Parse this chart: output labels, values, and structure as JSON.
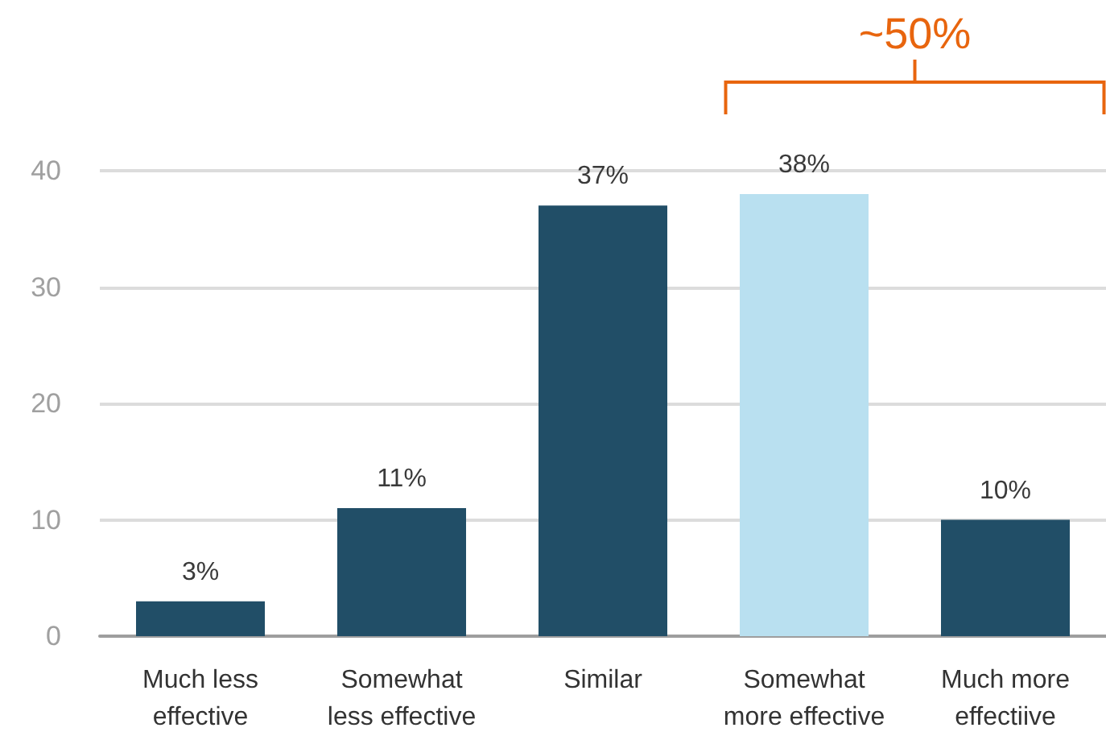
{
  "chart_data": {
    "type": "bar",
    "categories": [
      "Much less\neffective",
      "Somewhat\nless effective",
      "Similar",
      "Somewhat\nmore effective",
      "Much more\neffectiive"
    ],
    "values": [
      3,
      11,
      37,
      38,
      10
    ],
    "colors": [
      "#214e67",
      "#214e67",
      "#214e67",
      "#b9e0f0",
      "#214e67"
    ],
    "value_labels": [
      "3%",
      "11%",
      "37%",
      "38%",
      "10%"
    ],
    "ylim": [
      0,
      40
    ],
    "yticks": [
      0,
      10,
      20,
      30,
      40
    ],
    "grid": "y",
    "annotations": [
      "~50%"
    ]
  }
}
